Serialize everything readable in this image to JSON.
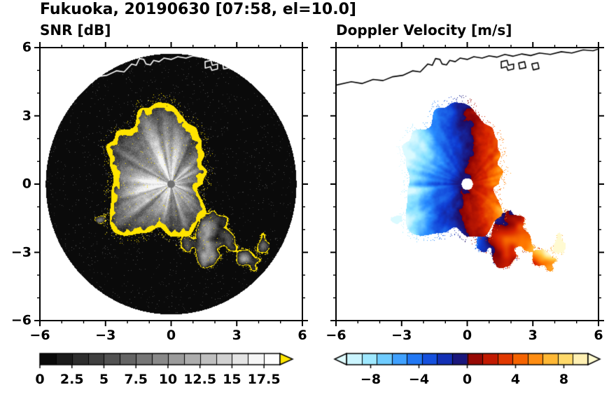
{
  "title": "Fukuoka, 20190630 [07:58, el=10.0]",
  "panels": {
    "snr": {
      "subtitle": "SNR [dB]"
    },
    "doppler": {
      "subtitle": "Doppler Velocity [m/s]"
    }
  },
  "axes": {
    "xlim": [
      -6,
      6
    ],
    "ylim": [
      -6,
      6
    ],
    "xticks": [
      -6,
      -3,
      0,
      3,
      6
    ],
    "yticks": [
      6,
      3,
      0,
      -3,
      -6
    ],
    "xtick_labels": [
      "−6",
      "−3",
      "0",
      "3",
      "6"
    ],
    "ytick_labels": [
      "6",
      "3",
      "0",
      "−3",
      "−6"
    ],
    "minor_tick_step": 1
  },
  "chart_data": [
    {
      "type": "heatmap",
      "name": "snr_ppi",
      "title": "SNR [dB]",
      "units": "dB",
      "xlim": [
        -6,
        6
      ],
      "ylim": [
        -6,
        6
      ],
      "colorbar": {
        "range": [
          0,
          18.75
        ],
        "ticks": [
          0,
          2.5,
          5,
          7.5,
          10,
          12.5,
          15,
          17.5
        ],
        "tick_labels": [
          "0",
          "2.5",
          "5",
          "7.5",
          "10",
          "12.5",
          "15",
          "17.5"
        ],
        "colormap": "black-to-white grayscale",
        "over_arrow": true,
        "over_color": "#ffe600"
      },
      "scene": {
        "coverage_circle": {
          "center": [
            0,
            0
          ],
          "radius": 5.73,
          "color": "black"
        },
        "radar_center_dot": {
          "center": [
            0,
            0
          ],
          "radius": 0.17,
          "color": "gray"
        },
        "main_echo": {
          "center": [
            -0.45,
            0.65
          ],
          "mean_radius": 2.4,
          "extent_x": [
            -3.3,
            2.4
          ],
          "extent_y": [
            -2.3,
            3.6
          ],
          "interior": "gray radial streaks ~2-16 dB, brightest near center",
          "rim": "yellow (above 17.5 dB)"
        },
        "secondary_echoes": {
          "region_center": [
            2.35,
            -2.75
          ],
          "style": "scattered dark gray patches with yellow rims"
        },
        "coastline_color": "#ffffff"
      }
    },
    {
      "type": "heatmap",
      "name": "doppler_velocity_ppi",
      "title": "Doppler Velocity [m/s]",
      "units": "m/s",
      "xlim": [
        -6,
        6
      ],
      "ylim": [
        -6,
        6
      ],
      "colorbar": {
        "range": [
          -10,
          10
        ],
        "ticks": [
          -8,
          -4,
          0,
          4,
          8
        ],
        "tick_labels": [
          "−8",
          "−4",
          "0",
          "4",
          "8"
        ],
        "colormap": "cyan-blue-navy (negative) / darkred-red-orange-yellow (positive)",
        "under_arrow": true,
        "over_arrow": true,
        "under_color": "#e1fcff",
        "over_color": "#fffbd0"
      },
      "scene": {
        "radar_center_dot": {
          "center": [
            0,
            0
          ],
          "radius": 0.26,
          "color": "white"
        },
        "dipole": {
          "description": "negative velocities (blue/cyan) on west side of echo, positive (red/orange/yellow) on east side",
          "approx_max_abs": 9
        },
        "secondary_echoes": {
          "region_center": [
            2.35,
            -2.75
          ],
          "style": "mixed orange/red and navy patches"
        },
        "coastline_color": "#000000"
      }
    }
  ],
  "coastline": {
    "mainland": [
      [
        -6,
        4.35
      ],
      [
        -5.3,
        4.5
      ],
      [
        -4.8,
        4.42
      ],
      [
        -4.3,
        4.6
      ],
      [
        -3.85,
        4.55
      ],
      [
        -3.4,
        4.72
      ],
      [
        -2.95,
        4.78
      ],
      [
        -2.5,
        4.98
      ],
      [
        -2.15,
        4.93
      ],
      [
        -1.8,
        5.28
      ],
      [
        -1.6,
        5.22
      ],
      [
        -1.45,
        5.52
      ],
      [
        -1.25,
        5.48
      ],
      [
        -1.15,
        5.28
      ],
      [
        -0.95,
        5.24
      ],
      [
        -0.8,
        5.44
      ],
      [
        -0.55,
        5.38
      ],
      [
        -0.32,
        5.54
      ],
      [
        0,
        5.48
      ],
      [
        0.3,
        5.6
      ],
      [
        0.68,
        5.54
      ],
      [
        1.0,
        5.64
      ],
      [
        1.35,
        5.58
      ],
      [
        1.72,
        5.7
      ],
      [
        2.1,
        5.62
      ],
      [
        2.5,
        5.72
      ],
      [
        2.9,
        5.65
      ],
      [
        3.3,
        5.76
      ],
      [
        3.8,
        5.7
      ],
      [
        4.3,
        5.82
      ],
      [
        4.78,
        5.76
      ],
      [
        5.3,
        5.9
      ],
      [
        5.75,
        5.86
      ],
      [
        6,
        5.94
      ]
    ],
    "islands": [
      [
        [
          1.55,
          5.38
        ],
        [
          1.82,
          5.44
        ],
        [
          1.88,
          5.22
        ],
        [
          2.12,
          5.28
        ],
        [
          2.12,
          5.06
        ],
        [
          1.86,
          5.0
        ],
        [
          1.8,
          5.16
        ],
        [
          1.56,
          5.1
        ]
      ],
      [
        [
          2.35,
          5.32
        ],
        [
          2.62,
          5.38
        ],
        [
          2.68,
          5.12
        ],
        [
          2.4,
          5.06
        ]
      ],
      [
        [
          2.95,
          5.28
        ],
        [
          3.22,
          5.34
        ],
        [
          3.28,
          5.08
        ],
        [
          3.02,
          5.02
        ]
      ]
    ]
  }
}
